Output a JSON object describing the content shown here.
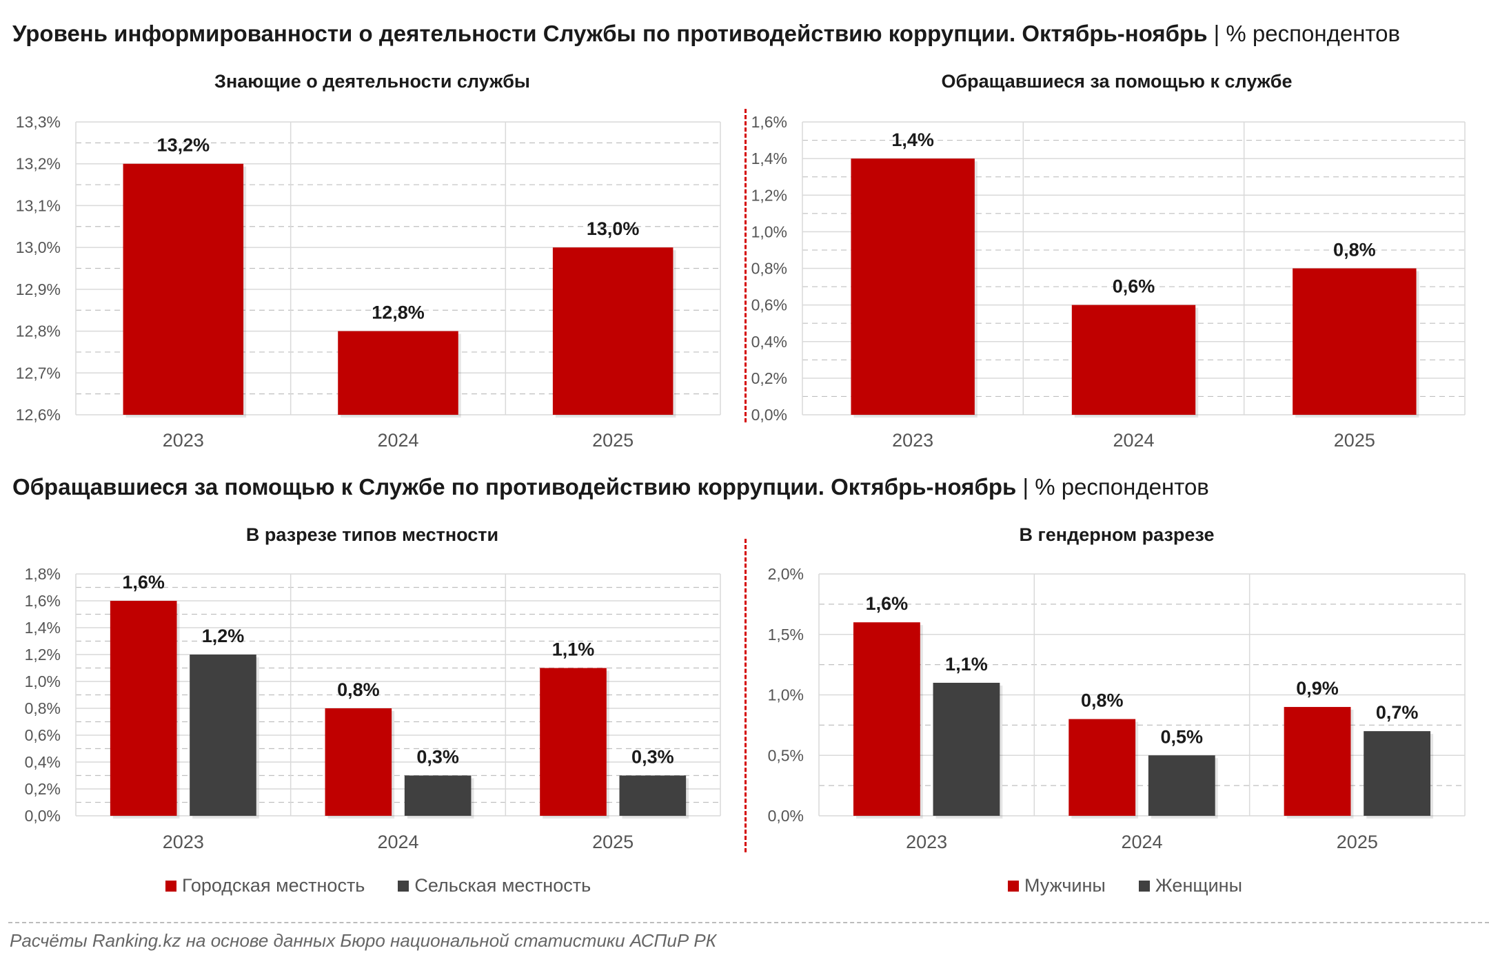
{
  "section_top": {
    "title": "Уровень информированности о деятельности Службы по противодействию коррупции. Октябрь-ноябрь",
    "sep": " | ",
    "unit": "% респондентов"
  },
  "section_bottom": {
    "title": "Обращавшиеся за помощью к Службе по противодействию коррупции. Октябрь-ноябрь",
    "sep": " | ",
    "unit": "% респондентов"
  },
  "footer": "Расчёты Ranking.kz на основе данных Бюро национальной статистики АСПиР РК",
  "colors": {
    "red": "#c00000",
    "dark": "#404040",
    "grid_major": "#d9d9d9",
    "grid_minor": "#bfbfbf",
    "divider": "#d40000"
  },
  "legend_left": [
    {
      "label": "Городская местность",
      "color": "#c00000"
    },
    {
      "label": "Сельская местность",
      "color": "#404040"
    }
  ],
  "legend_right": [
    {
      "label": "Мужчины",
      "color": "#c00000"
    },
    {
      "label": "Женщины",
      "color": "#404040"
    }
  ],
  "chart_data": [
    {
      "id": "p1",
      "type": "bar",
      "title": "Знающие о деятельности службы",
      "categories": [
        "2023",
        "2024",
        "2025"
      ],
      "series": [
        {
          "values": [
            13.2,
            12.8,
            13.0
          ],
          "labels": [
            "13,2%",
            "12,8%",
            "13,0%"
          ],
          "color": "#c00000"
        }
      ],
      "ylim": [
        12.6,
        13.3
      ],
      "yticks": [
        12.6,
        12.7,
        12.8,
        12.9,
        13.0,
        13.1,
        13.2,
        13.3
      ],
      "ytick_labels": [
        "12,6%",
        "12,7%",
        "12,8%",
        "12,9%",
        "13,0%",
        "13,1%",
        "13,2%",
        "13,3%"
      ],
      "grid": true,
      "legend": "none"
    },
    {
      "id": "p2",
      "type": "bar",
      "title": "Обращавшиеся за помощью к службе",
      "categories": [
        "2023",
        "2024",
        "2025"
      ],
      "series": [
        {
          "values": [
            1.4,
            0.6,
            0.8
          ],
          "labels": [
            "1,4%",
            "0,6%",
            "0,8%"
          ],
          "color": "#c00000"
        }
      ],
      "ylim": [
        0,
        1.6
      ],
      "yticks": [
        0,
        0.2,
        0.4,
        0.6,
        0.8,
        1.0,
        1.2,
        1.4,
        1.6
      ],
      "ytick_labels": [
        "0,0%",
        "0,2%",
        "0,4%",
        "0,6%",
        "0,8%",
        "1,0%",
        "1,2%",
        "1,4%",
        "1,6%"
      ],
      "grid": true,
      "legend": "none"
    },
    {
      "id": "p3",
      "type": "bar",
      "title": "В разрезе типов местности",
      "categories": [
        "2023",
        "2024",
        "2025"
      ],
      "series": [
        {
          "name": "Городская местность",
          "values": [
            1.6,
            0.8,
            1.1
          ],
          "labels": [
            "1,6%",
            "0,8%",
            "1,1%"
          ],
          "color": "#c00000"
        },
        {
          "name": "Сельская местность",
          "values": [
            1.2,
            0.3,
            0.3
          ],
          "labels": [
            "1,2%",
            "0,3%",
            "0,3%"
          ],
          "color": "#404040"
        }
      ],
      "ylim": [
        0,
        1.8
      ],
      "yticks": [
        0,
        0.2,
        0.4,
        0.6,
        0.8,
        1.0,
        1.2,
        1.4,
        1.6,
        1.8
      ],
      "ytick_labels": [
        "0,0%",
        "0,2%",
        "0,4%",
        "0,6%",
        "0,8%",
        "1,0%",
        "1,2%",
        "1,4%",
        "1,6%",
        "1,8%"
      ],
      "grid": true,
      "legend": "bottom"
    },
    {
      "id": "p4",
      "type": "bar",
      "title": "В гендерном разрезе",
      "categories": [
        "2023",
        "2024",
        "2025"
      ],
      "series": [
        {
          "name": "Мужчины",
          "values": [
            1.6,
            0.8,
            0.9
          ],
          "labels": [
            "1,6%",
            "0,8%",
            "0,9%"
          ],
          "color": "#c00000"
        },
        {
          "name": "Женщины",
          "values": [
            1.1,
            0.5,
            0.7
          ],
          "labels": [
            "1,1%",
            "0,5%",
            "0,7%"
          ],
          "color": "#404040"
        }
      ],
      "ylim": [
        0,
        2.0
      ],
      "yticks": [
        0,
        0.5,
        1.0,
        1.5,
        2.0
      ],
      "ytick_labels": [
        "0,0%",
        "0,5%",
        "1,0%",
        "1,5%",
        "2,0%"
      ],
      "grid": true,
      "legend": "bottom"
    }
  ]
}
